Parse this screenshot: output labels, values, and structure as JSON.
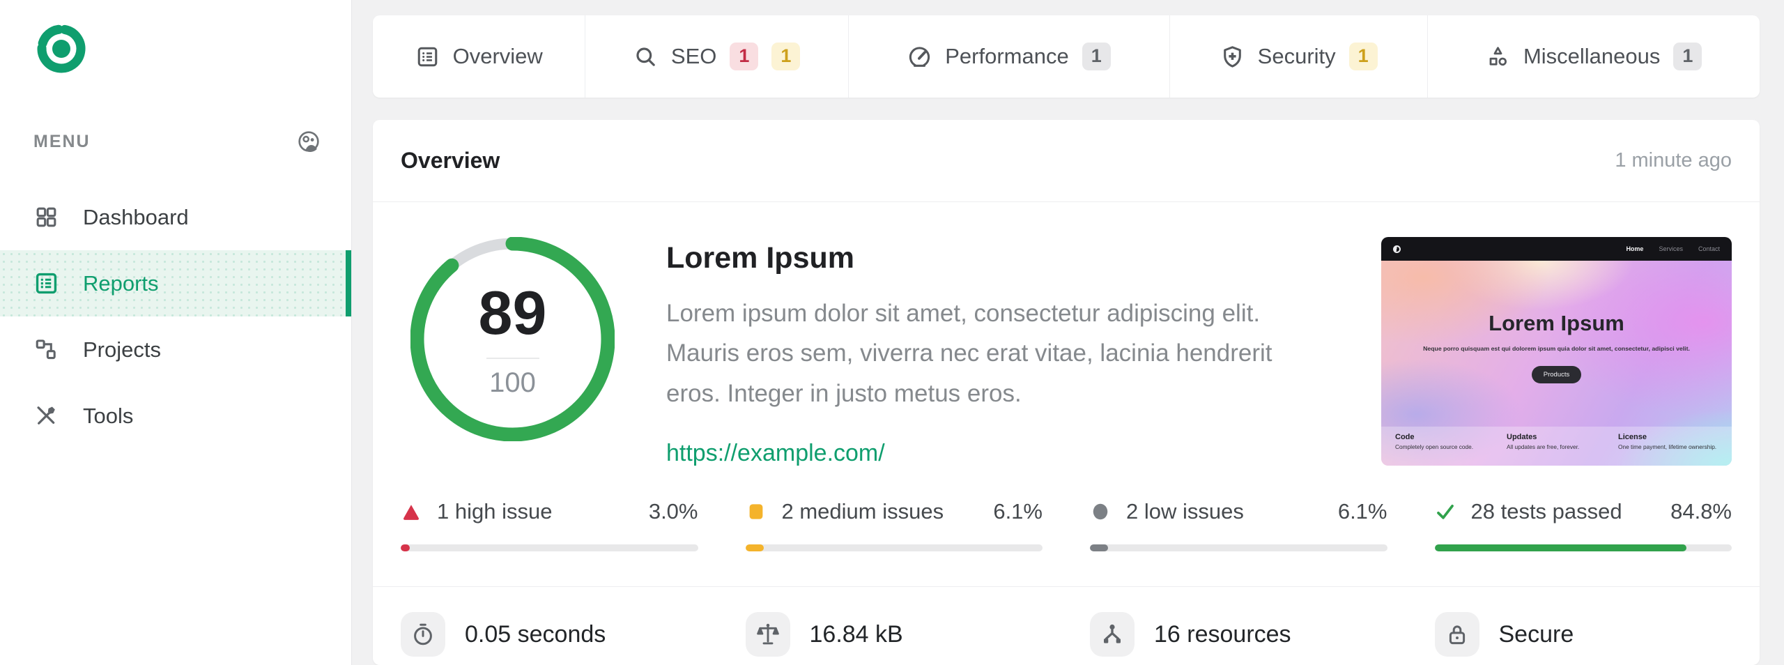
{
  "colors": {
    "brand_green": "#0f9e6e",
    "success_green": "#33a852",
    "high_red": "#d6334a",
    "medium_amber": "#f4b32b",
    "low_gray": "#7c8085",
    "badge_high_bg": "#f9dee1",
    "badge_medium_bg": "#fcf3d4",
    "badge_neutral_bg": "#e7e7e9",
    "page_bg": "#f1f1f2"
  },
  "sidebar": {
    "menu_label": "MENU",
    "items": [
      {
        "label": "Dashboard"
      },
      {
        "label": "Reports"
      },
      {
        "label": "Projects"
      },
      {
        "label": "Tools"
      }
    ]
  },
  "tabs": [
    {
      "label": "Overview"
    },
    {
      "label": "SEO",
      "badges": [
        {
          "value": "1",
          "severity": "high"
        },
        {
          "value": "1",
          "severity": "medium"
        }
      ]
    },
    {
      "label": "Performance",
      "badges": [
        {
          "value": "1",
          "severity": "neutral"
        }
      ]
    },
    {
      "label": "Security",
      "badges": [
        {
          "value": "1",
          "severity": "medium"
        }
      ]
    },
    {
      "label": "Miscellaneous",
      "badges": [
        {
          "value": "1",
          "severity": "neutral"
        }
      ]
    }
  ],
  "overview": {
    "title": "Overview",
    "updated": "1 minute ago",
    "score": {
      "value": "89",
      "max": "100",
      "percent": 89
    },
    "site": {
      "name": "Lorem Ipsum",
      "description": "Lorem ipsum dolor sit amet, consectetur adipiscing elit. Mauris eros sem, viverra nec erat vitae, lacinia hendrerit eros. Integer in justo metus eros.",
      "url": "https://example.com/"
    },
    "stats": [
      {
        "label": "1 high issue",
        "percent_label": "3.0%",
        "percent": 3
      },
      {
        "label": "2 medium issues",
        "percent_label": "6.1%",
        "percent": 6.1
      },
      {
        "label": "2 low issues",
        "percent_label": "6.1%",
        "percent": 6.1
      },
      {
        "label": "28 tests passed",
        "percent_label": "84.8%",
        "percent": 84.8
      }
    ],
    "metrics": [
      {
        "label": "0.05 seconds"
      },
      {
        "label": "16.84 kB"
      },
      {
        "label": "16 resources"
      },
      {
        "label": "Secure"
      }
    ]
  },
  "preview": {
    "nav_links": [
      "Home",
      "Services",
      "Contact"
    ],
    "heading": "Lorem Ipsum",
    "subheading": "Neque porro quisquam est qui dolorem ipsum quia dolor sit amet, consectetur, adipisci velit.",
    "button_label": "Products",
    "features": [
      {
        "title": "Code",
        "text": "Completely open source code."
      },
      {
        "title": "Updates",
        "text": "All updates are free, forever."
      },
      {
        "title": "License",
        "text": "One time payment, lifetime ownership."
      }
    ]
  }
}
